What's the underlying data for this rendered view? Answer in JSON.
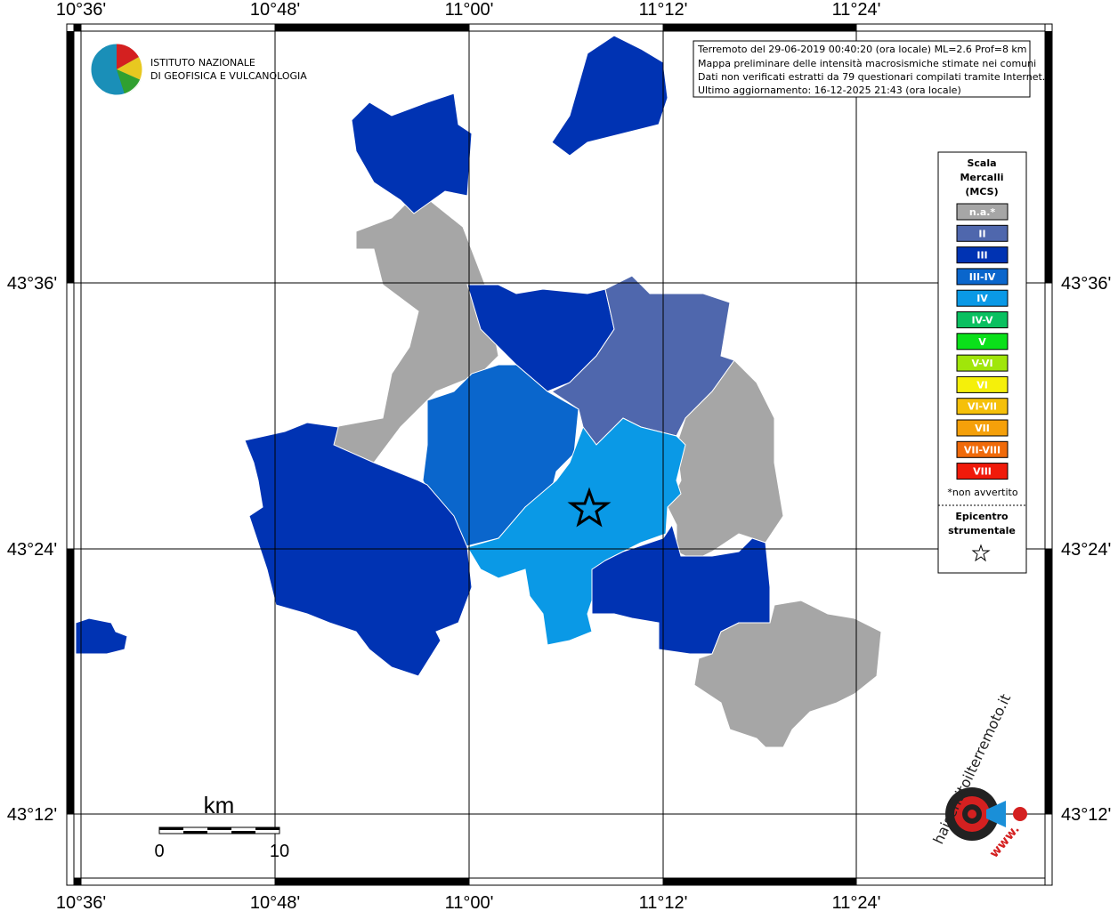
{
  "lon_labels": [
    "10°36'",
    "10°48'",
    "11°00'",
    "11°12'",
    "11°24'"
  ],
  "lat_labels": [
    "43°36'",
    "43°24'",
    "43°12'"
  ],
  "logo": {
    "line1": "ISTITUTO NAZIONALE",
    "line2": "DI GEOFISICA E VULCANOLOGIA"
  },
  "info": [
    "Terremoto del 29-06-2019 00:40:20 (ora locale) ML=2.6 Prof=8 km",
    "Mappa preliminare delle intensità macrosismiche stimate nei comuni",
    "Dati non verificati estratti da 79 questionari compilati tramite Internet.",
    "Ultimo aggiornamento: 16-12-2025 21:43 (ora locale)"
  ],
  "legend": {
    "title": [
      "Scala",
      "Mercalli",
      "(MCS)"
    ],
    "items": [
      {
        "label": "n.a.*",
        "color": "#a6a6a6"
      },
      {
        "label": "II",
        "color": "#4f67ad"
      },
      {
        "label": "III",
        "color": "#0033b3"
      },
      {
        "label": "III-IV",
        "color": "#0a66cc"
      },
      {
        "label": "IV",
        "color": "#0a99e6"
      },
      {
        "label": "IV-V",
        "color": "#0ac060"
      },
      {
        "label": "V",
        "color": "#0ae01a"
      },
      {
        "label": "V-VI",
        "color": "#a0e60a"
      },
      {
        "label": "VI",
        "color": "#f5f00a"
      },
      {
        "label": "VI-VII",
        "color": "#f5c00a"
      },
      {
        "label": "VII",
        "color": "#f5a00a"
      },
      {
        "label": "VII-VIII",
        "color": "#f06a0a"
      },
      {
        "label": "VIII",
        "color": "#f01a0a"
      }
    ],
    "note": "*non avvertito",
    "epicenter": [
      "Epicentro",
      "strumentale"
    ]
  },
  "scale": {
    "unit": "km",
    "labels": [
      "0",
      "10"
    ]
  },
  "site_logo": {
    "name": "haisentitoilterremoto.it",
    "www": "www."
  }
}
